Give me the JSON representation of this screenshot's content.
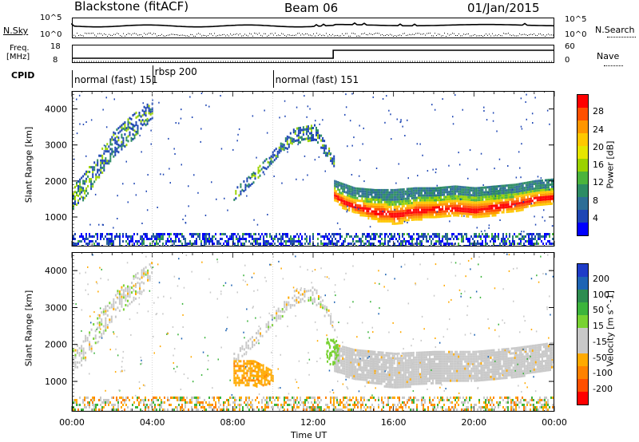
{
  "header": {
    "station": "Blackstone (fitACF)",
    "beam": "Beam 06",
    "date": "01/Jan/2015"
  },
  "status": {
    "nsky_label": "N.Sky",
    "nsky_ticks": [
      "10^5",
      "10^0"
    ],
    "nsearch_label": "N.Search",
    "nsearch_ticks": [
      "10^5",
      "10^0"
    ],
    "freq_label_1": "Freq.",
    "freq_label_2": "[MHz]",
    "freq_ticks": [
      "18",
      "8"
    ],
    "nave_label": "Nave",
    "nave_ticks": [
      "60",
      "0"
    ],
    "cpid_label": "CPID",
    "cpid_segments": [
      {
        "name": "normal (fast)",
        "code": "151",
        "start_hour": 0,
        "end_hour": 4
      },
      {
        "name": "rbsp",
        "code": "200",
        "start_hour": 4,
        "end_hour": 10
      },
      {
        "name": "normal (fast)",
        "code": "151",
        "start_hour": 10,
        "end_hour": 24
      }
    ]
  },
  "power_colorbar": {
    "title": "Power [dB]",
    "ticks": [
      "28",
      "24",
      "20",
      "16",
      "12",
      "8",
      "4"
    ],
    "colors": [
      "#ff0000",
      "#ff5000",
      "#ff9600",
      "#ffc800",
      "#e6e600",
      "#9bd200",
      "#4bb43c",
      "#2d8c64",
      "#2d6e96",
      "#1e46b4",
      "#0000ff"
    ]
  },
  "velocity_colorbar": {
    "title": "Velocity [m s^-1]",
    "ticks": [
      "200",
      "100",
      "50",
      "15",
      "-15",
      "-50",
      "-100",
      "-200"
    ],
    "colors": [
      "#1e3cc8",
      "#1e64b4",
      "#2d8c50",
      "#3cb43c",
      "#78d232",
      "#c8c8c8",
      "#c8c8c8",
      "#ffaa00",
      "#ff8200",
      "#ff5000",
      "#ff0000"
    ]
  },
  "chart_data": [
    {
      "type": "heatmap",
      "title": "",
      "quantity": "Power [dB]",
      "xlabel": "Time UT",
      "ylabel": "Slant Range [km]",
      "xlim": [
        0,
        24
      ],
      "ylim": [
        180,
        4500
      ],
      "xticks": [
        "00:00",
        "04:00",
        "08:00",
        "12:00",
        "16:00",
        "20:00",
        "00:00"
      ],
      "yticks": [
        1000,
        2000,
        3000,
        4000
      ],
      "features": [
        {
          "desc": "dense band",
          "hours": [
            13,
            13.5,
            14,
            15,
            16,
            17,
            18,
            19,
            20,
            21,
            22,
            23,
            24
          ],
          "range_lo_km": [
            1500,
            1250,
            1150,
            950,
            850,
            950,
            1050,
            1050,
            1000,
            1100,
            1200,
            1350,
            1400
          ],
          "range_hi_km": [
            2050,
            1950,
            1850,
            1800,
            1800,
            1850,
            1850,
            1900,
            1850,
            1900,
            1950,
            2050,
            2100
          ],
          "peak_db": 28
        },
        {
          "desc": "arc",
          "hours": [
            8,
            9,
            10,
            11,
            12,
            13
          ],
          "range_lo_km": [
            1500,
            2000,
            2600,
            3100,
            3200,
            2400
          ],
          "range_hi_km": [
            1800,
            2300,
            2900,
            3500,
            3600,
            2700
          ],
          "peak_db": 16
        },
        {
          "desc": "early band",
          "hours": [
            0,
            0.5,
            1,
            1.5,
            2,
            3,
            4
          ],
          "range_lo_km": [
            1300,
            1500,
            1900,
            2300,
            2700,
            3200,
            3800
          ],
          "range_hi_km": [
            1900,
            2200,
            2600,
            3000,
            3400,
            3900,
            4300
          ],
          "peak_db": 20
        }
      ]
    },
    {
      "type": "heatmap",
      "title": "",
      "quantity": "Velocity [m s^-1]",
      "xlabel": "Time UT",
      "ylabel": "Slant Range [km]",
      "xlim": [
        0,
        24
      ],
      "ylim": [
        180,
        4500
      ],
      "xticks": [
        "00:00",
        "04:00",
        "08:00",
        "12:00",
        "16:00",
        "20:00",
        "00:00"
      ],
      "yticks": [
        1000,
        2000,
        3000,
        4000
      ],
      "features": [
        {
          "desc": "ground scatter band",
          "hours": [
            13,
            14,
            16,
            18,
            20,
            22,
            24
          ],
          "range_lo_km": [
            1300,
            1100,
            850,
            1000,
            1050,
            1150,
            1400
          ],
          "range_hi_km": [
            2050,
            1900,
            1800,
            1850,
            1850,
            1950,
            2100
          ],
          "velocity": 0
        },
        {
          "desc": "negative velocity patch",
          "hours": [
            8,
            9,
            10
          ],
          "range_lo_km": [
            900,
            900,
            1000
          ],
          "range_hi_km": [
            1600,
            1600,
            1300
          ],
          "velocity": -50
        }
      ]
    }
  ]
}
